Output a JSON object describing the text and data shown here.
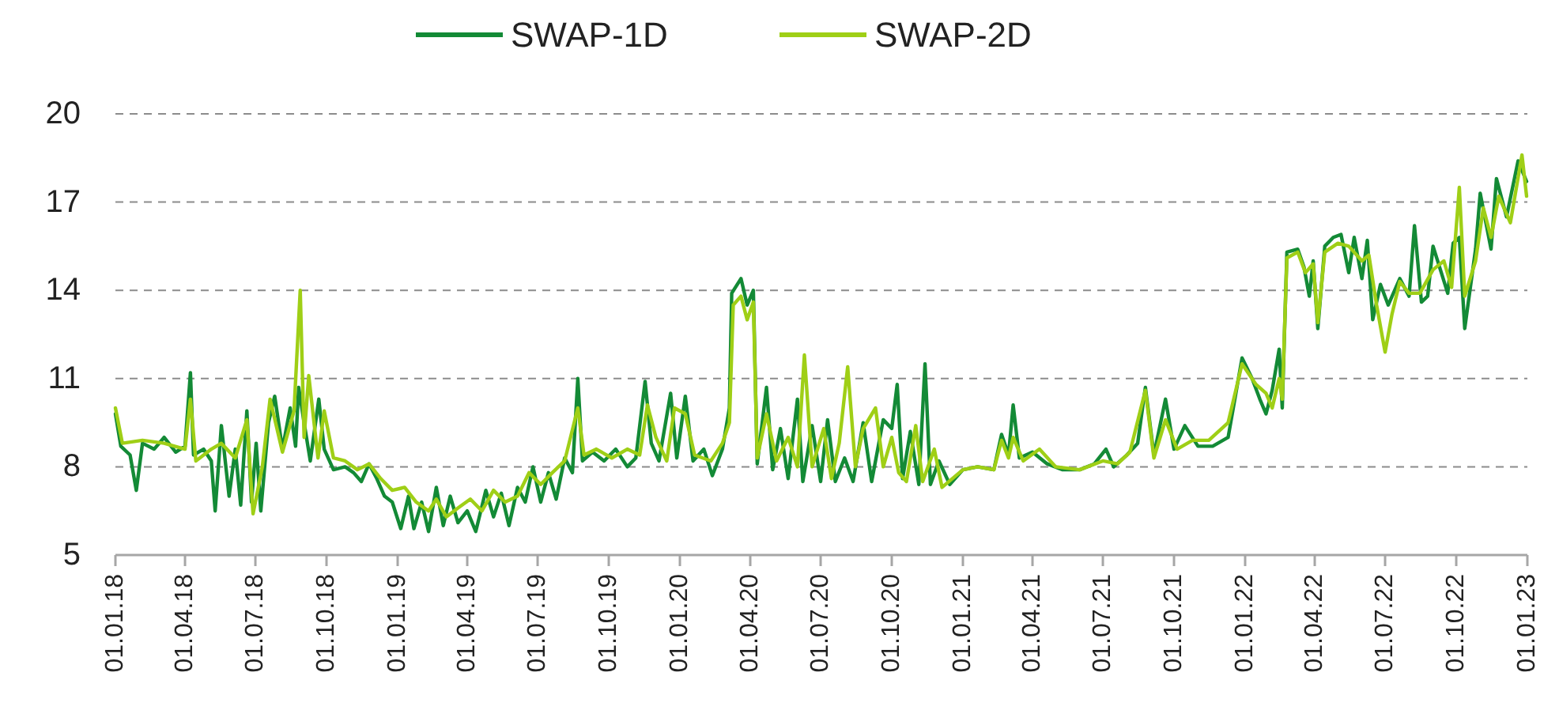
{
  "chart_data": {
    "type": "line",
    "legend": "top",
    "grid": "y",
    "line_style": "solid",
    "ylim": [
      5,
      20
    ],
    "yticks": [
      5,
      8,
      11,
      14,
      17,
      20
    ],
    "xlim": [
      "2018-01-01",
      "2023-01-01"
    ],
    "xticks": [
      {
        "value": "2018-01-01",
        "label": "01.01.18"
      },
      {
        "value": "2018-04-01",
        "label": "01.04.18"
      },
      {
        "value": "2018-07-01",
        "label": "01.07.18"
      },
      {
        "value": "2018-10-01",
        "label": "01.10.18"
      },
      {
        "value": "2019-01-01",
        "label": "01.01.19"
      },
      {
        "value": "2019-04-01",
        "label": "01.04.19"
      },
      {
        "value": "2019-07-01",
        "label": "01.07.19"
      },
      {
        "value": "2019-10-01",
        "label": "01.10.19"
      },
      {
        "value": "2020-01-01",
        "label": "01.01.20"
      },
      {
        "value": "2020-04-01",
        "label": "01.04.20"
      },
      {
        "value": "2020-07-01",
        "label": "01.07.20"
      },
      {
        "value": "2020-10-01",
        "label": "01.10.20"
      },
      {
        "value": "2021-01-01",
        "label": "01.01.21"
      },
      {
        "value": "2021-04-01",
        "label": "01.04.21"
      },
      {
        "value": "2021-07-01",
        "label": "01.07.21"
      },
      {
        "value": "2021-10-01",
        "label": "01.10.21"
      },
      {
        "value": "2022-01-01",
        "label": "01.01.22"
      },
      {
        "value": "2022-04-01",
        "label": "01.04.22"
      },
      {
        "value": "2022-07-01",
        "label": "01.07.22"
      },
      {
        "value": "2022-10-01",
        "label": "01.10.22"
      },
      {
        "value": "2023-01-01",
        "label": "01.01.23"
      }
    ],
    "series": [
      {
        "name": "SWAP-1D",
        "color": "#138a36",
        "x": [
          "2018-01-01",
          "2018-01-08",
          "2018-01-20",
          "2018-01-28",
          "2018-02-05",
          "2018-02-20",
          "2018-03-05",
          "2018-03-20",
          "2018-04-01",
          "2018-04-08",
          "2018-04-12",
          "2018-04-25",
          "2018-05-05",
          "2018-05-10",
          "2018-05-18",
          "2018-05-28",
          "2018-06-05",
          "2018-06-12",
          "2018-06-20",
          "2018-06-26",
          "2018-07-02",
          "2018-07-08",
          "2018-07-18",
          "2018-07-26",
          "2018-08-05",
          "2018-08-15",
          "2018-08-22",
          "2018-08-26",
          "2018-09-02",
          "2018-09-10",
          "2018-09-21",
          "2018-09-28",
          "2018-10-10",
          "2018-10-25",
          "2018-11-05",
          "2018-11-15",
          "2018-11-25",
          "2018-12-05",
          "2018-12-15",
          "2018-12-25",
          "2019-01-05",
          "2019-01-15",
          "2019-01-22",
          "2019-02-01",
          "2019-02-10",
          "2019-02-20",
          "2019-03-01",
          "2019-03-10",
          "2019-03-20",
          "2019-04-01",
          "2019-04-12",
          "2019-04-25",
          "2019-05-05",
          "2019-05-15",
          "2019-05-25",
          "2019-06-05",
          "2019-06-15",
          "2019-06-25",
          "2019-07-05",
          "2019-07-15",
          "2019-07-25",
          "2019-08-05",
          "2019-08-15",
          "2019-08-22",
          "2019-08-28",
          "2019-09-10",
          "2019-09-25",
          "2019-10-10",
          "2019-10-25",
          "2019-11-05",
          "2019-11-17",
          "2019-11-25",
          "2019-12-05",
          "2019-12-20",
          "2019-12-28",
          "2020-01-08",
          "2020-01-18",
          "2020-02-01",
          "2020-02-12",
          "2020-02-25",
          "2020-03-05",
          "2020-03-08",
          "2020-03-20",
          "2020-03-28",
          "2020-04-05",
          "2020-04-10",
          "2020-04-22",
          "2020-04-30",
          "2020-05-10",
          "2020-05-20",
          "2020-06-01",
          "2020-06-08",
          "2020-06-20",
          "2020-07-01",
          "2020-07-10",
          "2020-07-20",
          "2020-08-01",
          "2020-08-12",
          "2020-08-25",
          "2020-09-05",
          "2020-09-20",
          "2020-10-01",
          "2020-10-08",
          "2020-10-15",
          "2020-10-25",
          "2020-11-05",
          "2020-11-13",
          "2020-11-20",
          "2020-12-01",
          "2020-12-15",
          "2021-01-01",
          "2021-01-20",
          "2021-02-10",
          "2021-02-20",
          "2021-03-01",
          "2021-03-07",
          "2021-03-15",
          "2021-04-01",
          "2021-04-20",
          "2021-05-10",
          "2021-06-01",
          "2021-06-20",
          "2021-07-05",
          "2021-07-15",
          "2021-08-01",
          "2021-08-15",
          "2021-08-25",
          "2021-09-05",
          "2021-09-20",
          "2021-10-01",
          "2021-10-15",
          "2021-11-01",
          "2021-11-20",
          "2021-12-10",
          "2021-12-28",
          "2022-01-10",
          "2022-01-20",
          "2022-01-28",
          "2022-02-05",
          "2022-02-14",
          "2022-02-18",
          "2022-02-24",
          "2022-03-10",
          "2022-03-18",
          "2022-03-25",
          "2022-03-30",
          "2022-04-05",
          "2022-04-14",
          "2022-04-25",
          "2022-05-05",
          "2022-05-15",
          "2022-05-22",
          "2022-06-01",
          "2022-06-08",
          "2022-06-15",
          "2022-06-25",
          "2022-07-05",
          "2022-07-20",
          "2022-08-01",
          "2022-08-08",
          "2022-08-17",
          "2022-08-25",
          "2022-09-01",
          "2022-09-20",
          "2022-09-27",
          "2022-10-05",
          "2022-10-12",
          "2022-10-26",
          "2022-11-01",
          "2022-11-15",
          "2022-11-22",
          "2022-12-05",
          "2022-12-20",
          "2022-12-31"
        ],
        "values": [
          9.8,
          8.7,
          8.4,
          7.2,
          8.8,
          8.6,
          9.0,
          8.5,
          8.7,
          11.2,
          8.4,
          8.6,
          8.2,
          6.5,
          9.4,
          7.0,
          8.6,
          6.7,
          9.9,
          6.8,
          8.8,
          6.5,
          9.5,
          10.4,
          8.6,
          10.0,
          8.7,
          10.7,
          9.5,
          8.2,
          10.3,
          8.6,
          7.9,
          8.0,
          7.8,
          7.5,
          8.1,
          7.6,
          7.0,
          6.8,
          5.9,
          7.0,
          5.9,
          6.8,
          5.8,
          7.3,
          6.0,
          7.0,
          6.1,
          6.5,
          5.8,
          7.2,
          6.3,
          7.1,
          6.0,
          7.3,
          6.8,
          8.0,
          6.8,
          7.8,
          6.9,
          8.3,
          7.8,
          11.0,
          8.2,
          8.5,
          8.2,
          8.6,
          8.0,
          8.3,
          10.9,
          8.8,
          8.2,
          10.5,
          8.3,
          10.4,
          8.2,
          8.6,
          7.7,
          8.6,
          10.0,
          13.9,
          14.4,
          13.5,
          14.0,
          8.1,
          10.7,
          7.9,
          9.3,
          7.6,
          10.3,
          7.5,
          9.4,
          7.5,
          9.6,
          7.5,
          8.3,
          7.5,
          9.5,
          7.5,
          9.6,
          9.3,
          10.8,
          7.6,
          9.2,
          7.4,
          11.5,
          7.4,
          8.2,
          7.4,
          7.9,
          8.0,
          7.9,
          9.1,
          8.4,
          10.1,
          8.3,
          8.5,
          8.1,
          7.9,
          7.9,
          8.1,
          8.6,
          8.0,
          8.4,
          8.8,
          10.7,
          8.4,
          10.3,
          8.6,
          9.4,
          8.7,
          8.7,
          9.0,
          11.7,
          11.0,
          10.3,
          9.8,
          10.6,
          12.0,
          10.0,
          15.3,
          15.4,
          14.8,
          13.8,
          15.0,
          12.7,
          15.5,
          15.8,
          15.9,
          14.6,
          15.8,
          14.4,
          15.7,
          13.0,
          14.2,
          13.5,
          14.4,
          13.8,
          16.2,
          13.6,
          13.8,
          15.5,
          13.9,
          15.6,
          15.8,
          12.7,
          15.4,
          17.3,
          15.4,
          17.8,
          16.5,
          18.4,
          17.7
        ]
      },
      {
        "name": "SWAP-2D",
        "color": "#9fcf16",
        "x": [
          "2018-01-01",
          "2018-01-10",
          "2018-02-05",
          "2018-03-05",
          "2018-04-01",
          "2018-04-08",
          "2018-04-15",
          "2018-05-05",
          "2018-05-18",
          "2018-06-05",
          "2018-06-20",
          "2018-06-28",
          "2018-07-10",
          "2018-07-20",
          "2018-08-05",
          "2018-08-20",
          "2018-08-28",
          "2018-09-02",
          "2018-09-08",
          "2018-09-20",
          "2018-09-28",
          "2018-10-10",
          "2018-10-25",
          "2018-11-10",
          "2018-11-25",
          "2018-12-10",
          "2018-12-25",
          "2019-01-10",
          "2019-01-25",
          "2019-02-10",
          "2019-02-20",
          "2019-03-05",
          "2019-03-20",
          "2019-04-05",
          "2019-04-20",
          "2019-05-05",
          "2019-05-20",
          "2019-06-05",
          "2019-06-20",
          "2019-07-05",
          "2019-07-20",
          "2019-08-05",
          "2019-08-22",
          "2019-08-30",
          "2019-09-15",
          "2019-10-05",
          "2019-10-25",
          "2019-11-10",
          "2019-11-20",
          "2019-12-01",
          "2019-12-15",
          "2019-12-25",
          "2020-01-08",
          "2020-01-20",
          "2020-02-10",
          "2020-02-25",
          "2020-03-05",
          "2020-03-10",
          "2020-03-20",
          "2020-03-28",
          "2020-04-05",
          "2020-04-10",
          "2020-04-22",
          "2020-05-05",
          "2020-05-20",
          "2020-06-01",
          "2020-06-10",
          "2020-06-20",
          "2020-07-05",
          "2020-07-15",
          "2020-07-25",
          "2020-08-05",
          "2020-08-15",
          "2020-08-25",
          "2020-09-10",
          "2020-09-20",
          "2020-10-01",
          "2020-10-10",
          "2020-10-20",
          "2020-11-01",
          "2020-11-10",
          "2020-11-25",
          "2020-12-05",
          "2021-01-01",
          "2021-01-20",
          "2021-02-10",
          "2021-02-20",
          "2021-03-01",
          "2021-03-07",
          "2021-03-20",
          "2021-04-10",
          "2021-05-01",
          "2021-06-01",
          "2021-07-01",
          "2021-07-20",
          "2021-08-05",
          "2021-08-25",
          "2021-09-05",
          "2021-09-20",
          "2021-10-05",
          "2021-10-25",
          "2021-11-15",
          "2021-12-10",
          "2021-12-28",
          "2022-01-15",
          "2022-01-28",
          "2022-02-05",
          "2022-02-14",
          "2022-02-18",
          "2022-02-24",
          "2022-03-10",
          "2022-03-20",
          "2022-03-30",
          "2022-04-05",
          "2022-04-14",
          "2022-05-01",
          "2022-05-15",
          "2022-06-01",
          "2022-06-10",
          "2022-06-20",
          "2022-07-01",
          "2022-07-10",
          "2022-07-20",
          "2022-08-01",
          "2022-08-15",
          "2022-09-01",
          "2022-09-15",
          "2022-09-25",
          "2022-10-05",
          "2022-10-12",
          "2022-10-26",
          "2022-11-05",
          "2022-11-15",
          "2022-11-25",
          "2022-12-10",
          "2022-12-25",
          "2022-12-31"
        ],
        "values": [
          10.0,
          8.8,
          8.9,
          8.8,
          8.6,
          10.3,
          8.2,
          8.6,
          8.8,
          8.3,
          9.6,
          6.4,
          8.0,
          10.3,
          8.5,
          9.9,
          14.0,
          9.0,
          11.1,
          8.3,
          9.9,
          8.3,
          8.2,
          7.9,
          8.1,
          7.6,
          7.2,
          7.3,
          6.8,
          6.5,
          6.9,
          6.3,
          6.6,
          6.9,
          6.5,
          7.2,
          6.8,
          7.0,
          7.8,
          7.4,
          7.8,
          8.2,
          10.0,
          8.4,
          8.6,
          8.3,
          8.6,
          8.4,
          10.1,
          9.0,
          8.2,
          10.0,
          9.8,
          8.4,
          8.2,
          8.8,
          9.5,
          13.5,
          13.8,
          13.0,
          13.6,
          8.3,
          9.8,
          8.2,
          9.0,
          8.0,
          11.8,
          8.0,
          9.3,
          7.6,
          8.8,
          11.4,
          8.0,
          9.3,
          10.0,
          8.0,
          9.0,
          7.8,
          7.5,
          9.4,
          7.5,
          8.6,
          7.3,
          7.9,
          8.0,
          7.9,
          8.9,
          8.3,
          9.0,
          8.2,
          8.6,
          8.0,
          7.9,
          8.2,
          8.1,
          8.5,
          10.6,
          8.3,
          9.6,
          8.6,
          8.9,
          8.9,
          9.5,
          11.5,
          10.8,
          10.5,
          10.0,
          11.0,
          10.3,
          15.1,
          15.3,
          14.6,
          14.9,
          12.9,
          15.3,
          15.6,
          15.5,
          15.0,
          15.2,
          13.5,
          11.9,
          13.2,
          14.3,
          13.9,
          13.9,
          14.7,
          15.0,
          14.1,
          17.5,
          13.8,
          15.0,
          16.8,
          15.8,
          17.2,
          16.3,
          18.6,
          17.2
        ]
      }
    ]
  }
}
